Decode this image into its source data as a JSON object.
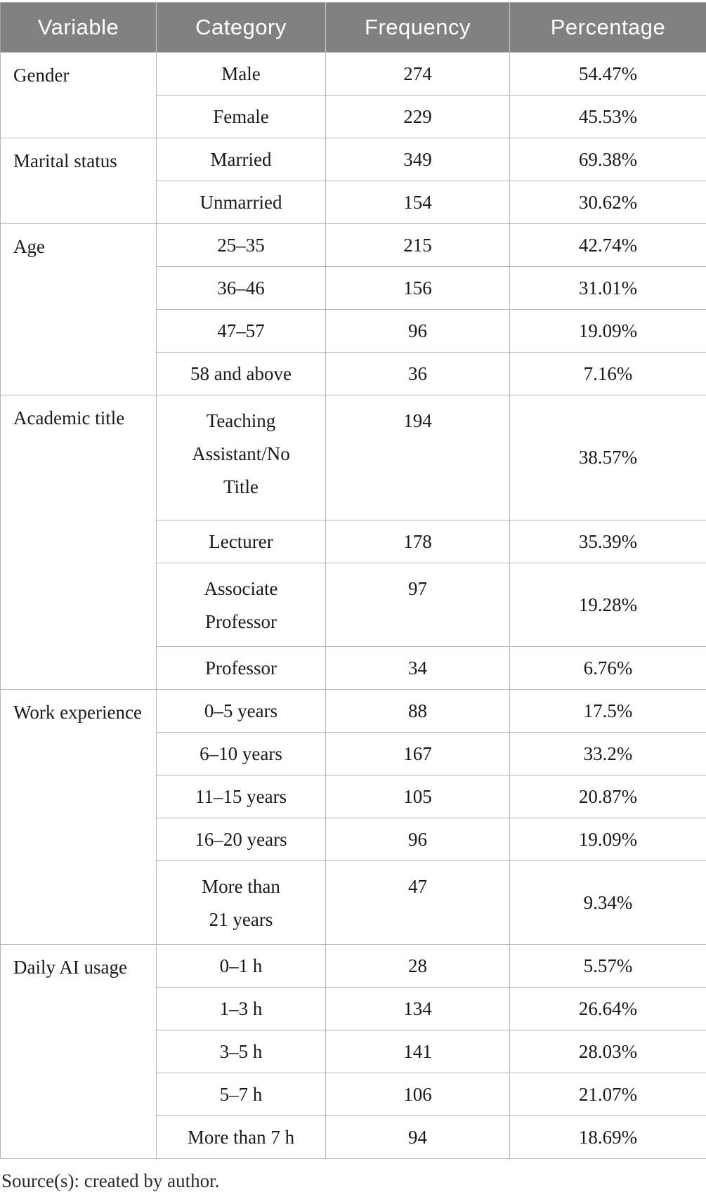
{
  "colors": {
    "header_bg": "#818181",
    "header_text": "#ffffff",
    "body_text": "#1a1a1a",
    "grid_line": "#b5b5b5",
    "outer_line": "#a6a6a6",
    "page_bg": "#ffffff"
  },
  "table": {
    "headers": [
      "Variable",
      "Category",
      "Frequency",
      "Percentage"
    ],
    "groups": [
      {
        "variable": "Gender",
        "rows": [
          {
            "category_lines": [
              "Male"
            ],
            "frequency": "274",
            "percentage": "54.47%"
          },
          {
            "category_lines": [
              "Female"
            ],
            "frequency": "229",
            "percentage": "45.53%"
          }
        ]
      },
      {
        "variable": "Marital status",
        "rows": [
          {
            "category_lines": [
              "Married"
            ],
            "frequency": "349",
            "percentage": "69.38%"
          },
          {
            "category_lines": [
              "Unmarried"
            ],
            "frequency": "154",
            "percentage": "30.62%"
          }
        ]
      },
      {
        "variable": "Age",
        "rows": [
          {
            "category_lines": [
              "25–35"
            ],
            "frequency": "215",
            "percentage": "42.74%"
          },
          {
            "category_lines": [
              "36–46"
            ],
            "frequency": "156",
            "percentage": "31.01%"
          },
          {
            "category_lines": [
              "47–57"
            ],
            "frequency": "96",
            "percentage": "19.09%"
          },
          {
            "category_lines": [
              "58 and above"
            ],
            "frequency": "36",
            "percentage": "7.16%"
          }
        ]
      },
      {
        "variable": "Academic title",
        "rows": [
          {
            "category_lines": [
              "Teaching",
              "Assistant/No",
              "Title"
            ],
            "frequency": "194",
            "percentage": "38.57%"
          },
          {
            "category_lines": [
              "Lecturer"
            ],
            "frequency": "178",
            "percentage": "35.39%"
          },
          {
            "category_lines": [
              "Associate",
              "Professor"
            ],
            "frequency": "97",
            "percentage": "19.28%"
          },
          {
            "category_lines": [
              "Professor"
            ],
            "frequency": "34",
            "percentage": "6.76%"
          }
        ]
      },
      {
        "variable": "Work experience",
        "rows": [
          {
            "category_lines": [
              "0–5 years"
            ],
            "frequency": "88",
            "percentage": "17.5%"
          },
          {
            "category_lines": [
              "6–10 years"
            ],
            "frequency": "167",
            "percentage": "33.2%"
          },
          {
            "category_lines": [
              "11–15 years"
            ],
            "frequency": "105",
            "percentage": "20.87%"
          },
          {
            "category_lines": [
              "16–20 years"
            ],
            "frequency": "96",
            "percentage": "19.09%"
          },
          {
            "category_lines": [
              "More than",
              "21 years"
            ],
            "frequency": "47",
            "percentage": "9.34%"
          }
        ]
      },
      {
        "variable": "Daily AI usage",
        "rows": [
          {
            "category_lines": [
              "0–1 h"
            ],
            "frequency": "28",
            "percentage": "5.57%"
          },
          {
            "category_lines": [
              "1–3 h"
            ],
            "frequency": "134",
            "percentage": "26.64%"
          },
          {
            "category_lines": [
              "3–5 h"
            ],
            "frequency": "141",
            "percentage": "28.03%"
          },
          {
            "category_lines": [
              "5–7 h"
            ],
            "frequency": "106",
            "percentage": "21.07%"
          },
          {
            "category_lines": [
              "More than 7 h"
            ],
            "frequency": "94",
            "percentage": "18.69%"
          }
        ]
      }
    ]
  },
  "footer": {
    "source_note": "Source(s): created by author."
  }
}
